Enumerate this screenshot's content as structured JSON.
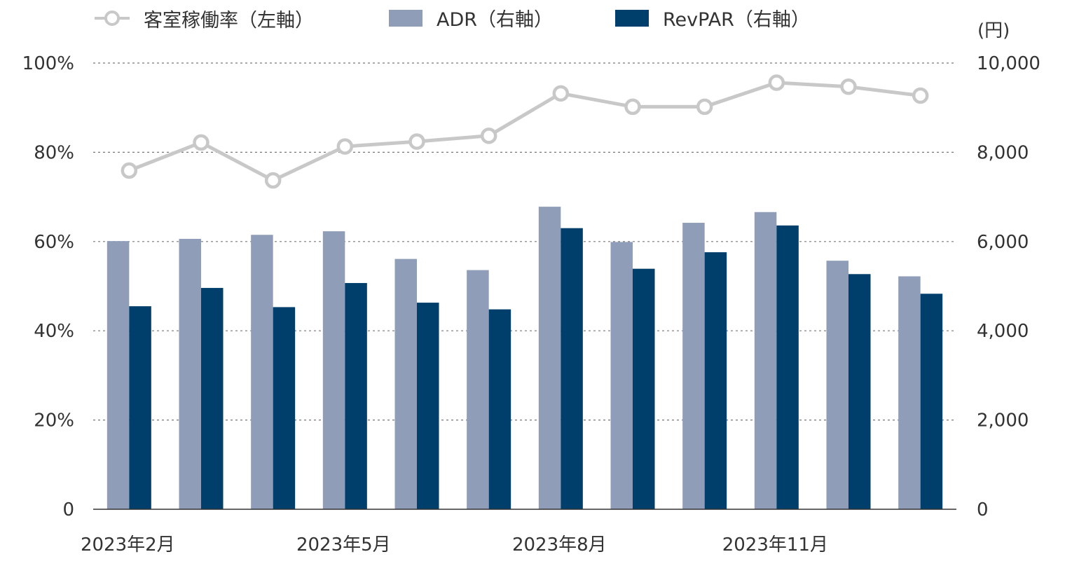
{
  "chart_data": {
    "type": "bar",
    "categories": [
      "2023年2月",
      "2023年3月",
      "2023年4月",
      "2023年5月",
      "2023年6月",
      "2023年7月",
      "2023年8月",
      "2023年9月",
      "2023年10月",
      "2023年11月",
      "2023年12月",
      "2024年1月"
    ],
    "x_tick_labels": [
      "2023年2月",
      "",
      "",
      "2023年5月",
      "",
      "",
      "2023年8月",
      "",
      "",
      "2023年11月",
      "",
      ""
    ],
    "series": [
      {
        "name": "客室稼働率（左軸）",
        "type": "line",
        "axis": "left",
        "values": [
          75.9,
          82.2,
          73.7,
          81.3,
          82.4,
          83.7,
          93.2,
          90.2,
          90.2,
          95.6,
          94.7,
          92.7
        ],
        "color": "#c8c8c8"
      },
      {
        "name": "ADR（右軸）",
        "type": "bar",
        "axis": "right",
        "values": [
          6010,
          6060,
          6150,
          6230,
          5610,
          5360,
          6780,
          5990,
          6420,
          6660,
          5570,
          5220
        ],
        "color": "#8f9db8"
      },
      {
        "name": "RevPAR（右軸）",
        "type": "bar",
        "axis": "right",
        "values": [
          4550,
          4960,
          4530,
          5070,
          4630,
          4480,
          6300,
          5390,
          5760,
          6360,
          5270,
          4830
        ],
        "color": "#003f6b"
      }
    ],
    "y_left": {
      "range": [
        0,
        100
      ],
      "ticks": [
        0,
        20,
        40,
        60,
        80,
        100
      ],
      "tick_labels": [
        "0",
        "20%",
        "40%",
        "60%",
        "80%",
        "100%"
      ]
    },
    "y_right": {
      "range": [
        0,
        10000
      ],
      "ticks": [
        0,
        2000,
        4000,
        6000,
        8000,
        10000
      ],
      "tick_labels": [
        "0",
        "2,000",
        "4,000",
        "6,000",
        "8,000",
        "10,000"
      ],
      "unit": "(円)"
    },
    "grid": "dashed horizontal",
    "legend": "top"
  },
  "legend": {
    "occupancy": "客室稼働率（左軸）",
    "adr": "ADR（右軸）",
    "revpar": "RevPAR（右軸）"
  },
  "right_axis_unit": "(円)",
  "colors": {
    "line": "#c8c8c8",
    "adr": "#8f9db8",
    "revpar": "#003f6b",
    "grid": "#777777",
    "axis": "#333333",
    "text": "#333333"
  }
}
